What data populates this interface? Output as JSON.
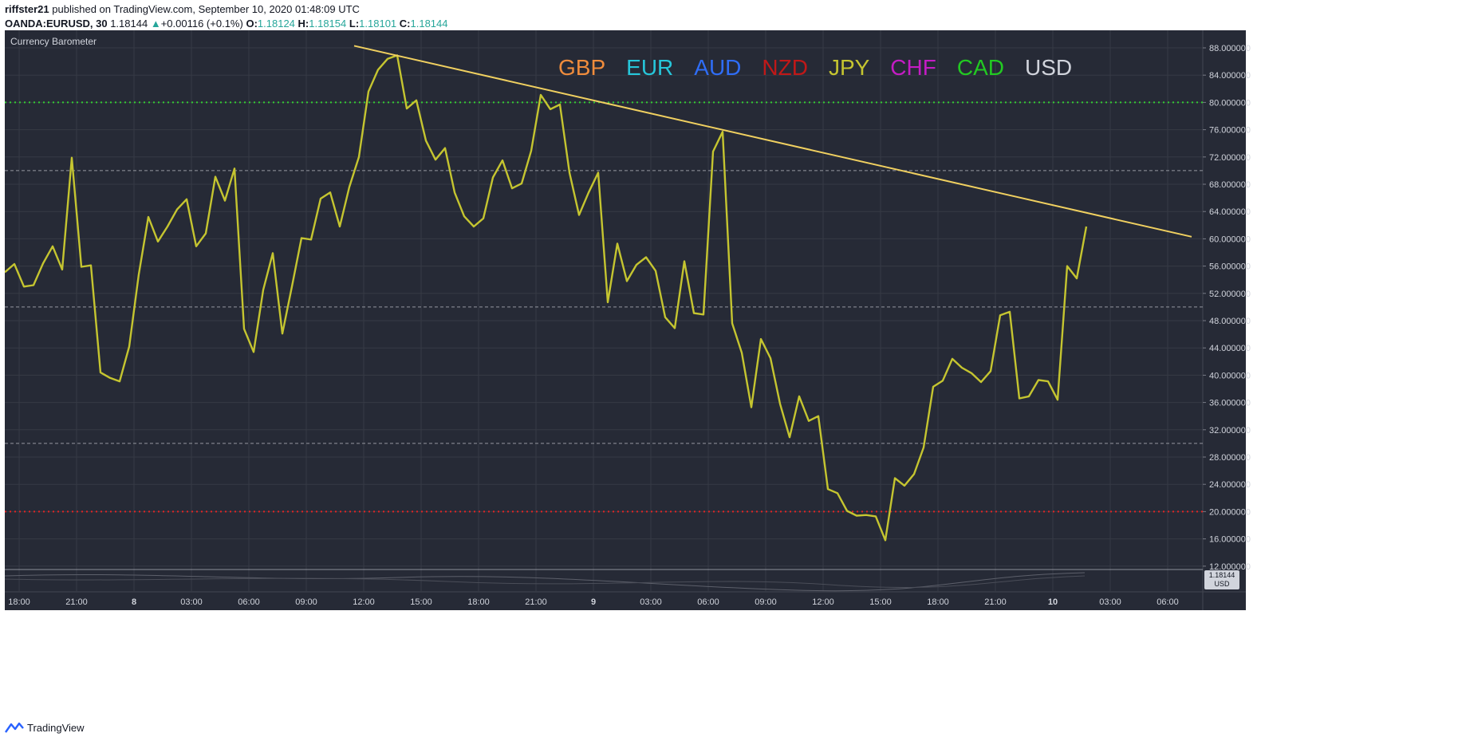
{
  "header": {
    "author": "riffster21",
    "published_text": "published on TradingView.com, September 10, 2020 01:48:09 UTC",
    "symbol": "OANDA:EURUSD, 30",
    "last_price": "1.18144",
    "change_arrow": "▲",
    "change": "+0.00116 (+0.1%)",
    "o_label": "O:",
    "o_value": "1.18124",
    "h_label": "H:",
    "h_value": "1.18154",
    "l_label": "L:",
    "l_value": "1.18101",
    "c_label": "C:",
    "c_value": "1.18144"
  },
  "footer": {
    "brand": "TradingView"
  },
  "colors": {
    "background": "#262a36",
    "grid": "#363a45",
    "series": "#c5c530",
    "trendline": "#f0d060",
    "upper_level": "#33cc33",
    "lower_level": "#e02424",
    "axis_text": "#d1d4dc"
  },
  "chart_data": {
    "type": "line",
    "title": "Currency Barometer",
    "legend": [
      {
        "label": "GBP",
        "color": "#f08c3c"
      },
      {
        "label": "EUR",
        "color": "#26c6da"
      },
      {
        "label": "AUD",
        "color": "#2f6df6"
      },
      {
        "label": "NZD",
        "color": "#c01818"
      },
      {
        "label": "JPY",
        "color": "#c5c530"
      },
      {
        "label": "CHF",
        "color": "#c41cc4"
      },
      {
        "label": "CAD",
        "color": "#22c922"
      },
      {
        "label": "USD",
        "color": "#d1d4dc"
      }
    ],
    "ylim": [
      12,
      88
    ],
    "y_ticks": [
      "88.000000",
      "84.000000",
      "80.000000",
      "76.000000",
      "72.000000",
      "68.000000",
      "64.000000",
      "60.000000",
      "56.000000",
      "52.000000",
      "48.000000",
      "44.000000",
      "40.000000",
      "36.000000",
      "32.000000",
      "28.000000",
      "24.000000",
      "20.000000",
      "16.000000",
      "12.000000"
    ],
    "x_ticks": [
      {
        "label": "18:00",
        "bar": 1.5,
        "bold": false
      },
      {
        "label": "21:00",
        "bar": 7.5,
        "bold": false
      },
      {
        "label": "8",
        "bar": 13.5,
        "bold": true
      },
      {
        "label": "03:00",
        "bar": 19.5,
        "bold": false
      },
      {
        "label": "06:00",
        "bar": 25.5,
        "bold": false
      },
      {
        "label": "09:00",
        "bar": 31.5,
        "bold": false
      },
      {
        "label": "12:00",
        "bar": 37.5,
        "bold": false
      },
      {
        "label": "15:00",
        "bar": 43.5,
        "bold": false
      },
      {
        "label": "18:00",
        "bar": 49.5,
        "bold": false
      },
      {
        "label": "21:00",
        "bar": 55.5,
        "bold": false
      },
      {
        "label": "9",
        "bar": 61.5,
        "bold": true
      },
      {
        "label": "03:00",
        "bar": 67.5,
        "bold": false
      },
      {
        "label": "06:00",
        "bar": 73.5,
        "bold": false
      },
      {
        "label": "09:00",
        "bar": 79.5,
        "bold": false
      },
      {
        "label": "12:00",
        "bar": 85.5,
        "bold": false
      },
      {
        "label": "15:00",
        "bar": 91.5,
        "bold": false
      },
      {
        "label": "18:00",
        "bar": 97.5,
        "bold": false
      },
      {
        "label": "21:00",
        "bar": 103.5,
        "bold": false
      },
      {
        "label": "10",
        "bar": 109.5,
        "bold": true
      },
      {
        "label": "03:00",
        "bar": 115.5,
        "bold": false
      },
      {
        "label": "06:00",
        "bar": 121.5,
        "bold": false
      }
    ],
    "series": [
      {
        "label": "JPY",
        "start_bar": 0,
        "values": [
          55.1,
          56.3,
          53.0,
          53.2,
          56.4,
          58.9,
          55.5,
          71.9,
          55.9,
          56.1,
          40.4,
          39.6,
          39.1,
          44.2,
          54.8,
          63.2,
          59.6,
          61.8,
          64.3,
          65.8,
          58.9,
          60.8,
          69.1,
          65.6,
          70.3,
          46.8,
          43.4,
          52.5,
          57.9,
          46.1,
          53.0,
          60.1,
          59.9,
          65.9,
          66.8,
          61.8,
          67.6,
          72.0,
          81.6,
          84.8,
          86.4,
          86.9,
          79.1,
          80.3,
          74.4,
          71.6,
          73.3,
          66.8,
          63.3,
          61.8,
          63.0,
          69.0,
          71.5,
          67.4,
          68.1,
          72.9,
          81.1,
          79.0,
          79.7,
          69.7,
          63.5,
          66.8,
          69.7,
          50.7,
          59.3,
          53.8,
          56.2,
          57.3,
          55.3,
          48.5,
          46.9,
          56.7,
          49.1,
          48.9,
          72.8,
          75.7,
          47.6,
          43.3,
          35.3,
          45.3,
          42.5,
          35.8,
          30.9,
          36.9,
          33.3,
          34.0,
          23.3,
          22.7,
          20.1,
          19.4,
          19.5,
          19.3,
          15.8,
          24.9,
          23.8,
          25.5,
          29.4,
          38.3,
          39.2,
          42.4,
          41.1,
          40.3,
          39.0,
          40.6,
          48.8,
          49.3,
          36.6,
          36.9,
          39.3,
          39.1,
          36.4,
          56.0,
          54.2,
          61.8
        ]
      }
    ],
    "trendline": {
      "from": {
        "bar": 36.5,
        "y": 88.3
      },
      "to": {
        "bar": 124.0,
        "y": 60.3
      }
    },
    "levels": [
      {
        "y": 80,
        "style": "dotted",
        "role": "upper"
      },
      {
        "y": 70,
        "style": "dashed",
        "role": "mid-high"
      },
      {
        "y": 50,
        "style": "dashed",
        "role": "mid"
      },
      {
        "y": 30,
        "style": "dashed",
        "role": "mid-low"
      },
      {
        "y": 20,
        "style": "dotted",
        "role": "lower"
      }
    ],
    "price_badge": {
      "value": "1.18144",
      "label": "USD"
    },
    "grid": true,
    "legend_position": "top-center"
  }
}
